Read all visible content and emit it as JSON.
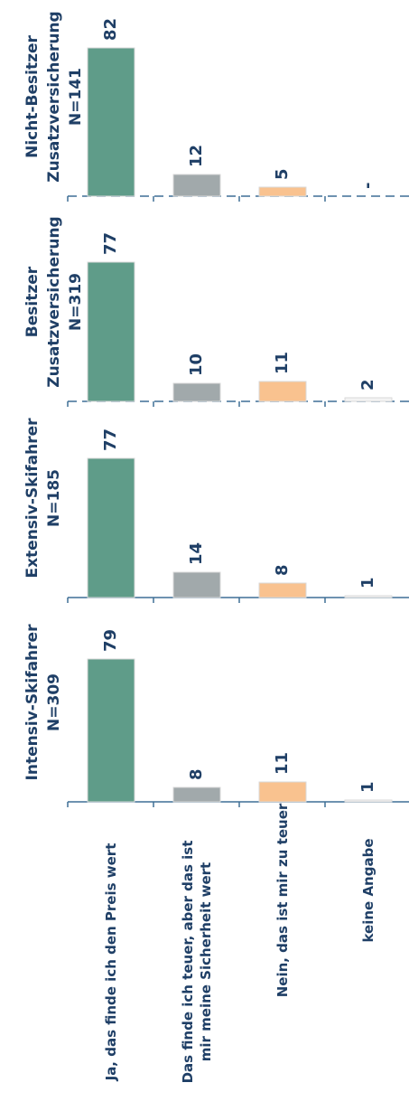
{
  "chart_data": {
    "type": "bar",
    "orientation": "rotated",
    "categories": [
      "Ja, das finde ich den Preis wert",
      "Das finde ich teuer, aber das ist mir meine Sicherheit wert",
      "Nein, das ist mir zu teuer",
      "keine Angabe"
    ],
    "colors": [
      "#5f9c89",
      "#a1a9ab",
      "#f9c28f",
      "#f3f3f3"
    ],
    "ylim": [
      0,
      100
    ],
    "panels": [
      {
        "title": [
          "Intensiv-Skifahrer",
          "N=309"
        ],
        "values": [
          79,
          8,
          11,
          1
        ],
        "labels": [
          "79",
          "8",
          "11",
          "1"
        ]
      },
      {
        "title": [
          "Extensiv-Skifahrer",
          "N=185"
        ],
        "values": [
          77,
          14,
          8,
          1
        ],
        "labels": [
          "77",
          "14",
          "8",
          "1"
        ]
      },
      {
        "title": [
          "Besitzer",
          "Zusatzversicherung",
          "N=319"
        ],
        "values": [
          77,
          10,
          11,
          2
        ],
        "labels": [
          "77",
          "10",
          "11",
          "2"
        ]
      },
      {
        "title": [
          "Nicht-Besitzer",
          "Zusatzversicherung",
          "N=141"
        ],
        "values": [
          82,
          12,
          5,
          0
        ],
        "labels": [
          "82",
          "12",
          "5",
          "-"
        ]
      }
    ]
  }
}
